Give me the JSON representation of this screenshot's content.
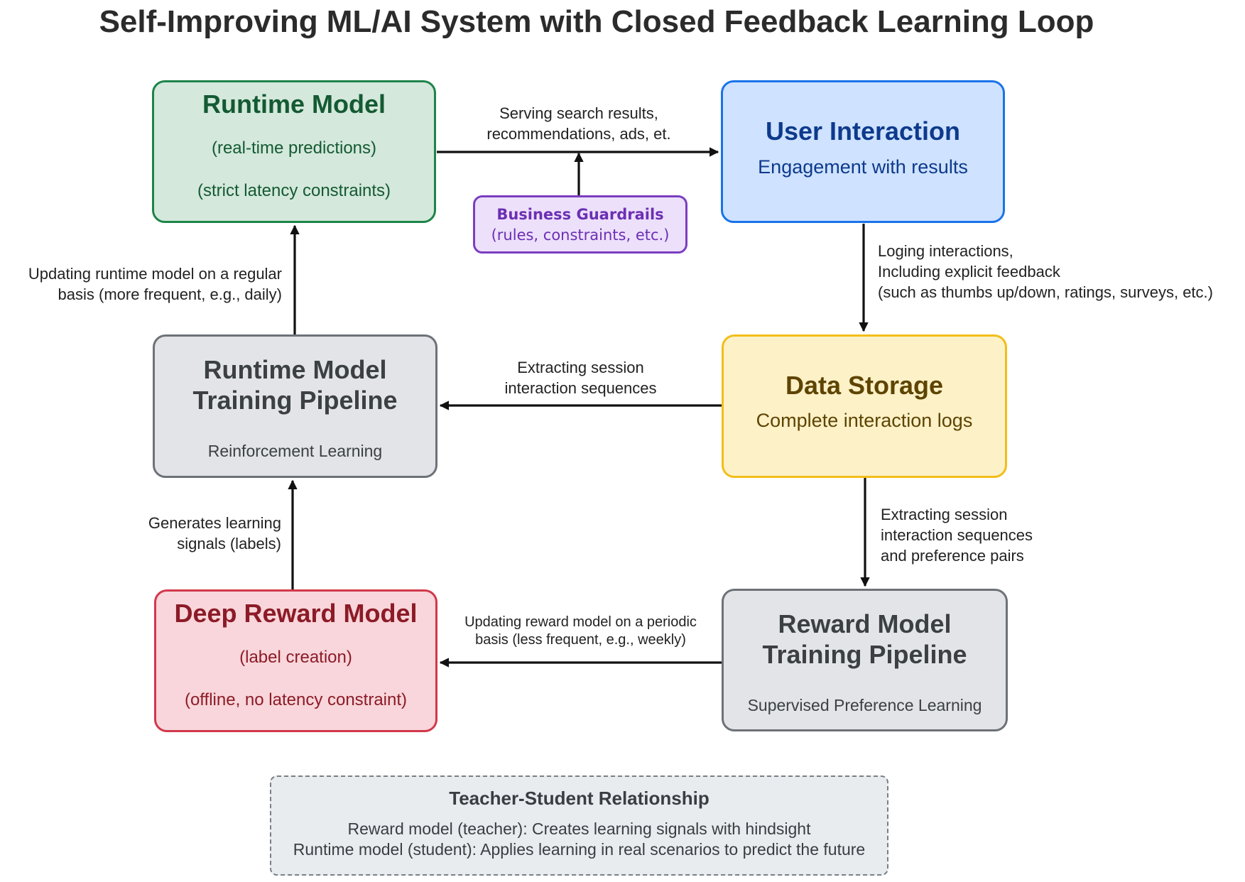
{
  "title": "Self-Improving ML/AI System with Closed Feedback Learning Loop",
  "nodes": {
    "runtime_model": {
      "title": "Runtime Model",
      "line1": "(real-time predictions)",
      "line2": "(strict latency constraints)"
    },
    "user_interaction": {
      "title": "User Interaction",
      "subtitle": "Engagement with results"
    },
    "business_guardrails": {
      "title": "Business Guardrails",
      "subtitle": "(rules, constraints, etc.)"
    },
    "runtime_training_pipeline": {
      "title_line1": "Runtime Model",
      "title_line2": "Training Pipeline",
      "subtitle": "Reinforcement Learning"
    },
    "data_storage": {
      "title": "Data Storage",
      "subtitle": "Complete interaction logs"
    },
    "deep_reward_model": {
      "title": "Deep Reward Model",
      "line1": "(label creation)",
      "line2": "(offline, no latency constraint)"
    },
    "reward_training_pipeline": {
      "title_line1": "Reward Model",
      "title_line2": "Training Pipeline",
      "subtitle": "Supervised Preference Learning"
    }
  },
  "edges": {
    "serving": [
      "Serving search results,",
      "recommendations, ads, et."
    ],
    "logging": [
      "Loging interactions,",
      "Including explicit feedback",
      "(such as thumbs up/down, ratings, surveys, etc.)"
    ],
    "extract_runtime": [
      "Extracting session",
      "interaction sequences"
    ],
    "extract_reward": [
      "Extracting session",
      "interaction sequences",
      "and preference pairs"
    ],
    "update_runtime": [
      "Updating runtime model on a regular",
      "basis (more frequent, e.g., daily)"
    ],
    "generate_signals": [
      "Generates learning",
      "signals (labels)"
    ],
    "update_reward": [
      "Updating reward model on a periodic",
      "basis (less frequent, e.g., weekly)"
    ]
  },
  "note": {
    "title": "Teacher-Student Relationship",
    "line1": "Reward model (teacher): Creates learning signals with hindsight",
    "line2": "Runtime model (student): Applies learning in real scenarios to predict the future"
  },
  "colors": {
    "runtime_model": "#1e8449",
    "user_interaction": "#1a73e8",
    "business_guardrails": "#7b3ec0",
    "pipelines": "#6d7278",
    "data_storage": "#f2be18",
    "deep_reward_model": "#d2384b",
    "arrows": "#111111"
  }
}
